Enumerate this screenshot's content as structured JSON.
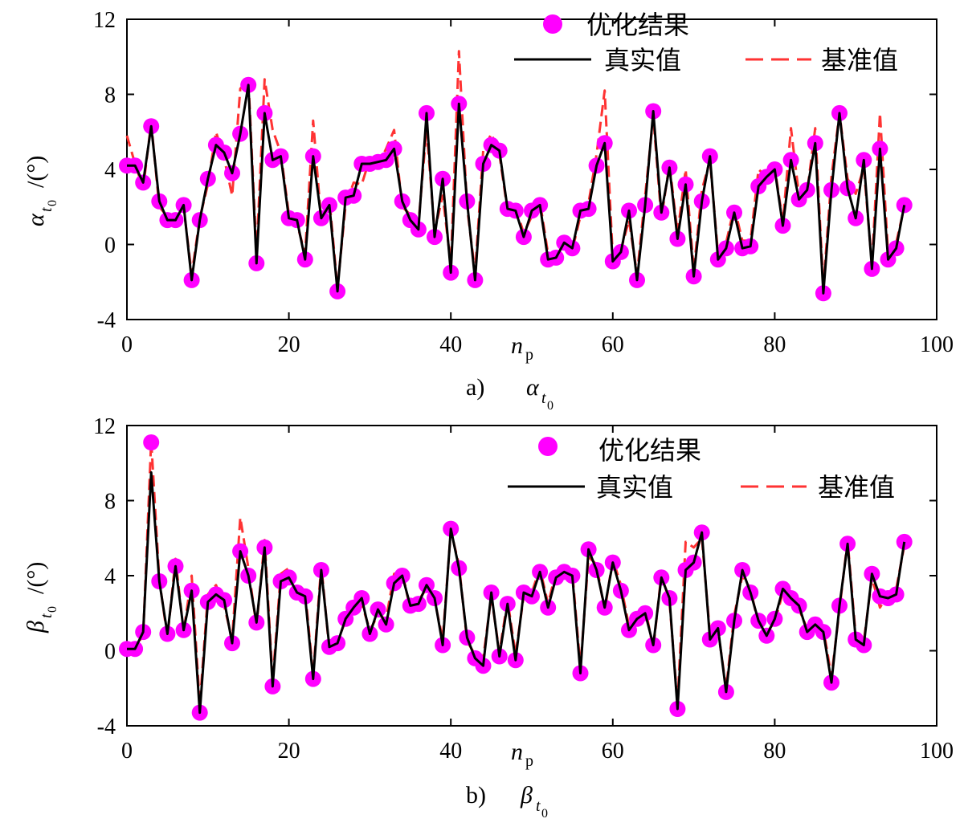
{
  "chart_data": [
    {
      "type": "line",
      "panel_label": "a)",
      "caption_symbol": "α",
      "caption_subscript": "t",
      "caption_subsubscript": "0",
      "ylabel_symbol": "α",
      "ylabel_subscript": "t",
      "ylabel_subsubscript": "0",
      "ylabel_unit": "/(°)",
      "xlabel_main": "n",
      "xlabel_sub": "p",
      "xlim": [
        0,
        100
      ],
      "ylim": [
        -4,
        12
      ],
      "xticks": [
        0,
        20,
        40,
        60,
        80,
        100
      ],
      "yticks": [
        -4,
        0,
        4,
        8,
        12
      ],
      "legend": {
        "position": "top-right",
        "entries": [
          "优化结果",
          "真实值",
          "基准值"
        ]
      },
      "colors": {
        "opt": "#ff00ff",
        "true": "#000000",
        "base": "#ff3333"
      },
      "x": [
        0,
        1,
        2,
        3,
        4,
        5,
        6,
        7,
        8,
        9,
        10,
        11,
        12,
        13,
        14,
        15,
        16,
        17,
        18,
        19,
        20,
        21,
        22,
        23,
        24,
        25,
        26,
        27,
        28,
        29,
        30,
        31,
        32,
        33,
        34,
        35,
        36,
        37,
        38,
        39,
        40,
        41,
        42,
        43,
        44,
        45,
        46,
        47,
        48,
        49,
        50,
        51,
        52,
        53,
        54,
        55,
        56,
        57,
        58,
        59,
        60,
        61,
        62,
        63,
        64,
        65,
        66,
        67,
        68,
        69,
        70,
        71,
        72,
        73,
        74,
        75,
        76,
        77,
        78,
        79,
        80,
        81,
        82,
        83,
        84,
        85,
        86,
        87,
        88,
        89,
        90,
        91,
        92,
        93,
        94,
        95,
        96
      ],
      "series": [
        {
          "name": "优化结果",
          "style": "marker",
          "values": [
            4.2,
            4.2,
            3.3,
            6.3,
            2.3,
            1.3,
            1.3,
            2.1,
            -1.9,
            1.3,
            3.5,
            5.3,
            4.9,
            3.8,
            5.9,
            8.5,
            -1.0,
            7.0,
            4.5,
            4.7,
            1.4,
            1.3,
            -0.8,
            4.7,
            1.4,
            2.1,
            -2.5,
            2.5,
            2.6,
            4.3,
            4.3,
            4.4,
            4.5,
            5.1,
            2.3,
            1.3,
            0.8,
            7.0,
            0.4,
            3.5,
            -1.5,
            7.5,
            2.3,
            -1.9,
            4.3,
            5.3,
            5.0,
            1.9,
            1.8,
            0.4,
            1.8,
            2.1,
            -0.8,
            -0.7,
            0.1,
            -0.2,
            1.8,
            1.9,
            4.2,
            5.4,
            -0.9,
            -0.4,
            1.8,
            -1.9,
            2.1,
            7.1,
            1.7,
            4.1,
            0.3,
            3.2,
            -1.7,
            2.3,
            4.7,
            -0.8,
            -0.2,
            1.7,
            -0.2,
            -0.1,
            3.1,
            3.6,
            4.0,
            1.0,
            4.5,
            2.4,
            2.9,
            5.4,
            -2.6,
            2.9,
            7.0,
            3.0,
            1.4,
            4.5,
            -1.3,
            5.1,
            -0.8,
            -0.2,
            2.1
          ]
        },
        {
          "name": "真实值",
          "style": "solid",
          "values": [
            4.2,
            4.2,
            3.3,
            6.3,
            2.3,
            1.3,
            1.3,
            2.1,
            -1.9,
            1.3,
            3.5,
            5.3,
            4.9,
            3.8,
            5.9,
            8.5,
            -1.0,
            7.0,
            4.5,
            4.7,
            1.4,
            1.3,
            -0.8,
            4.7,
            1.4,
            2.1,
            -2.5,
            2.5,
            2.6,
            4.3,
            4.3,
            4.4,
            4.5,
            5.1,
            2.3,
            1.3,
            0.8,
            7.0,
            0.4,
            3.5,
            -1.5,
            7.5,
            2.3,
            -1.9,
            4.3,
            5.3,
            5.0,
            1.9,
            1.8,
            0.4,
            1.8,
            2.1,
            -0.8,
            -0.7,
            0.1,
            -0.2,
            1.8,
            1.9,
            4.2,
            5.4,
            -0.9,
            -0.4,
            1.8,
            -1.9,
            2.1,
            7.1,
            1.7,
            4.1,
            0.3,
            3.2,
            -1.7,
            2.3,
            4.7,
            -0.8,
            -0.2,
            1.7,
            -0.2,
            -0.1,
            3.1,
            3.6,
            4.0,
            1.0,
            4.5,
            2.4,
            2.9,
            5.4,
            -2.6,
            2.9,
            7.0,
            3.0,
            1.4,
            4.5,
            -1.3,
            5.1,
            -0.8,
            -0.2,
            2.1
          ]
        },
        {
          "name": "基准值",
          "style": "dashed",
          "values": [
            5.8,
            4.3,
            3.0,
            6.5,
            2.0,
            1.5,
            1.4,
            2.0,
            -1.6,
            1.4,
            3.2,
            6.0,
            4.6,
            2.6,
            8.3,
            8.8,
            -0.5,
            8.8,
            6.1,
            4.9,
            1.6,
            1.1,
            -0.5,
            6.6,
            1.2,
            2.4,
            -2.3,
            2.1,
            3.3,
            3.2,
            4.6,
            4.2,
            5.1,
            6.1,
            2.0,
            1.6,
            1.1,
            6.2,
            0.7,
            2.6,
            -1.1,
            10.3,
            2.0,
            -1.5,
            5.0,
            5.9,
            4.8,
            1.8,
            2.0,
            0.6,
            1.5,
            2.3,
            -0.5,
            -0.9,
            0.3,
            -0.3,
            1.5,
            2.2,
            4.8,
            8.2,
            -0.7,
            -0.3,
            1.3,
            -1.6,
            2.6,
            6.8,
            1.4,
            4.3,
            0.6,
            4.0,
            -1.4,
            2.9,
            4.5,
            -0.5,
            0.1,
            2.0,
            0.2,
            0.2,
            4.0,
            3.6,
            4.1,
            1.2,
            6.2,
            2.6,
            2.8,
            6.2,
            -2.3,
            3.6,
            7.0,
            3.5,
            2.7,
            4.1,
            -1.1,
            7.0,
            -0.5,
            0.1,
            2.0
          ]
        }
      ]
    },
    {
      "type": "line",
      "panel_label": "b)",
      "caption_symbol": "β",
      "caption_subscript": "t",
      "caption_subsubscript": "0",
      "ylabel_symbol": "β",
      "ylabel_subscript": "t",
      "ylabel_subsubscript": "0",
      "ylabel_unit": "/(°)",
      "xlabel_main": "n",
      "xlabel_sub": "p",
      "xlim": [
        0,
        100
      ],
      "ylim": [
        -4,
        12
      ],
      "xticks": [
        0,
        20,
        40,
        60,
        80,
        100
      ],
      "yticks": [
        -4,
        0,
        4,
        8,
        12
      ],
      "legend": {
        "position": "top-right",
        "entries": [
          "优化结果",
          "真实值",
          "基准值"
        ]
      },
      "colors": {
        "opt": "#ff00ff",
        "true": "#000000",
        "base": "#ff3333"
      },
      "x": [
        0,
        1,
        2,
        3,
        4,
        5,
        6,
        7,
        8,
        9,
        10,
        11,
        12,
        13,
        14,
        15,
        16,
        17,
        18,
        19,
        20,
        21,
        22,
        23,
        24,
        25,
        26,
        27,
        28,
        29,
        30,
        31,
        32,
        33,
        34,
        35,
        36,
        37,
        38,
        39,
        40,
        41,
        42,
        43,
        44,
        45,
        46,
        47,
        48,
        49,
        50,
        51,
        52,
        53,
        54,
        55,
        56,
        57,
        58,
        59,
        60,
        61,
        62,
        63,
        64,
        65,
        66,
        67,
        68,
        69,
        70,
        71,
        72,
        73,
        74,
        75,
        76,
        77,
        78,
        79,
        80,
        81,
        82,
        83,
        84,
        85,
        86,
        87,
        88,
        89,
        90,
        91,
        92,
        93,
        94,
        95,
        96
      ],
      "series": [
        {
          "name": "优化结果",
          "style": "marker",
          "values": [
            0.1,
            0.1,
            1.0,
            11.1,
            3.7,
            0.9,
            4.5,
            1.1,
            3.2,
            -3.3,
            2.6,
            3.0,
            2.7,
            0.4,
            5.3,
            4.0,
            1.5,
            5.5,
            -1.9,
            3.7,
            3.9,
            3.1,
            2.9,
            -1.5,
            4.3,
            0.2,
            0.4,
            1.7,
            2.3,
            2.8,
            0.9,
            2.2,
            1.4,
            3.6,
            4.0,
            2.4,
            2.5,
            3.5,
            2.8,
            0.3,
            6.5,
            4.4,
            0.7,
            -0.4,
            -0.8,
            3.1,
            -0.3,
            2.5,
            -0.5,
            3.1,
            2.9,
            4.2,
            2.3,
            3.9,
            4.2,
            4.0,
            -1.2,
            5.4,
            4.3,
            2.3,
            4.7,
            3.2,
            1.1,
            1.7,
            2.0,
            0.3,
            3.9,
            2.8,
            -3.1,
            4.3,
            4.7,
            6.3,
            0.6,
            1.2,
            -2.2,
            1.6,
            4.3,
            3.1,
            1.6,
            0.8,
            1.7,
            3.3,
            2.8,
            2.4,
            1.0,
            1.4,
            1.0,
            -1.7,
            2.4,
            5.7,
            0.6,
            0.3,
            4.1,
            2.9,
            2.8,
            3.0,
            5.8
          ]
        },
        {
          "name": "真实值",
          "style": "solid",
          "values": [
            0.1,
            0.1,
            1.0,
            9.5,
            3.7,
            0.9,
            4.5,
            1.1,
            3.2,
            -3.3,
            2.6,
            3.0,
            2.7,
            0.4,
            5.3,
            4.0,
            1.5,
            5.5,
            -1.9,
            3.7,
            3.9,
            3.1,
            2.9,
            -1.5,
            4.3,
            0.2,
            0.4,
            1.7,
            2.3,
            2.8,
            0.9,
            2.2,
            1.4,
            3.6,
            4.0,
            2.4,
            2.5,
            3.5,
            2.8,
            0.3,
            6.5,
            4.4,
            0.7,
            -0.4,
            -0.8,
            3.1,
            -0.3,
            2.5,
            -0.5,
            3.1,
            2.9,
            4.2,
            2.3,
            3.9,
            4.2,
            4.0,
            -1.2,
            5.4,
            4.3,
            2.3,
            4.7,
            3.2,
            1.1,
            1.7,
            2.0,
            0.3,
            3.9,
            2.8,
            -3.1,
            4.3,
            4.7,
            6.3,
            0.6,
            1.2,
            -2.2,
            1.6,
            4.3,
            3.1,
            1.6,
            0.8,
            1.7,
            3.3,
            2.8,
            2.4,
            1.0,
            1.4,
            1.0,
            -1.7,
            2.4,
            5.7,
            0.6,
            0.3,
            4.1,
            2.9,
            2.8,
            3.0,
            5.8
          ]
        },
        {
          "name": "基准值",
          "style": "dashed",
          "values": [
            0.0,
            0.2,
            0.8,
            11.2,
            3.8,
            0.7,
            4.9,
            1.0,
            4.0,
            -2.9,
            3.0,
            3.5,
            2.4,
            0.6,
            7.1,
            4.4,
            1.3,
            5.9,
            -1.6,
            4.1,
            4.4,
            3.0,
            3.2,
            -1.3,
            4.6,
            0.0,
            0.5,
            1.6,
            2.6,
            2.5,
            1.1,
            1.9,
            1.7,
            4.1,
            4.2,
            2.2,
            2.7,
            3.3,
            2.7,
            0.6,
            6.4,
            4.6,
            0.5,
            -0.2,
            -0.4,
            2.9,
            -0.1,
            2.7,
            -0.2,
            2.9,
            3.1,
            4.4,
            2.5,
            4.2,
            3.9,
            4.2,
            -0.9,
            5.0,
            4.6,
            2.1,
            4.9,
            3.5,
            1.3,
            1.5,
            2.3,
            0.1,
            4.1,
            2.6,
            -2.8,
            5.8,
            5.5,
            6.0,
            0.9,
            1.1,
            -2.0,
            1.9,
            4.0,
            3.3,
            1.4,
            1.0,
            1.5,
            3.1,
            3.0,
            2.2,
            1.2,
            1.2,
            1.2,
            -1.4,
            2.2,
            5.9,
            0.8,
            0.5,
            3.9,
            2.3,
            3.0,
            3.3,
            5.6
          ]
        }
      ]
    }
  ]
}
